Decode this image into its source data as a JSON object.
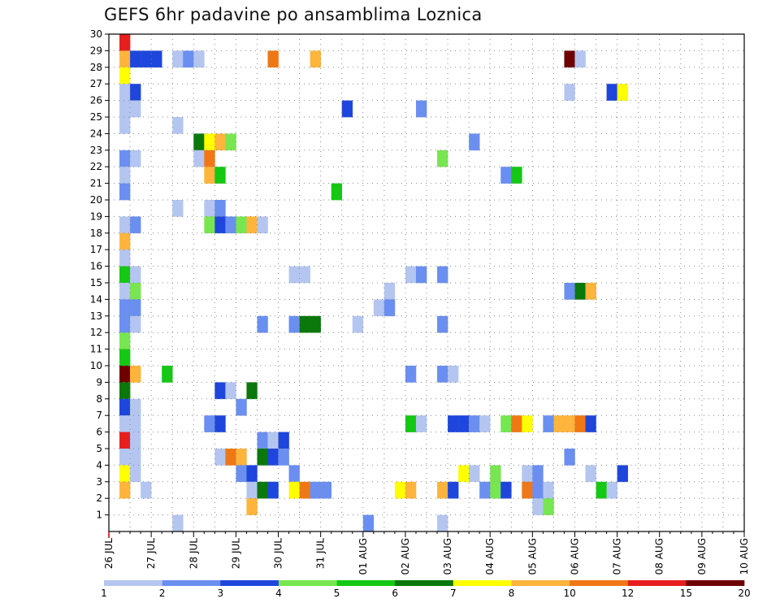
{
  "chart_data": {
    "type": "heatmap",
    "title": "GEFS 6hr padavine po ansamblima Loznica",
    "x_tick_labels": [
      "26 JUL",
      "27 JUL",
      "28 JUL",
      "29 JUL",
      "30 JUL",
      "31 JUL",
      "01 AUG",
      "02 AUG",
      "03 AUG",
      "04 AUG",
      "05 AUG",
      "06 AUG",
      "07 AUG",
      "08 AUG",
      "09 AUG",
      "10 AUG"
    ],
    "x_steps_per_day": 4,
    "x_range_steps": [
      0,
      60
    ],
    "y_tick_labels": [
      "1",
      "2",
      "3",
      "4",
      "5",
      "6",
      "7",
      "8",
      "9",
      "10",
      "11",
      "12",
      "13",
      "14",
      "15",
      "16",
      "17",
      "18",
      "19",
      "20",
      "21",
      "22",
      "23",
      "24",
      "25",
      "26",
      "27",
      "28",
      "29",
      "30"
    ],
    "y_range": [
      0,
      30
    ],
    "grid": "dotted",
    "colorbar": {
      "labels": [
        "1",
        "2",
        "3",
        "4",
        "5",
        "6",
        "7",
        "8",
        "10",
        "12",
        "15",
        "20"
      ],
      "colors": [
        "#b4c6f0",
        "#6a8ff0",
        "#1e46dc",
        "#78e650",
        "#14c814",
        "#0a780a",
        "#ffff00",
        "#ffb43c",
        "#f07814",
        "#e61e1e",
        "#6e0000"
      ]
    },
    "cells": [
      [
        1,
        30,
        10
      ],
      [
        1,
        29,
        8
      ],
      [
        1,
        28,
        7
      ],
      [
        1,
        27,
        1
      ],
      [
        1,
        26,
        1
      ],
      [
        1,
        25,
        1
      ],
      [
        1,
        23,
        2
      ],
      [
        1,
        22,
        1
      ],
      [
        1,
        21,
        2
      ],
      [
        1,
        19,
        1
      ],
      [
        1,
        18,
        8
      ],
      [
        1,
        17,
        1
      ],
      [
        1,
        16,
        5
      ],
      [
        1,
        15,
        1
      ],
      [
        1,
        14,
        2
      ],
      [
        1,
        13,
        2
      ],
      [
        1,
        12,
        4
      ],
      [
        1,
        11,
        5
      ],
      [
        1,
        10,
        11
      ],
      [
        1,
        9,
        6
      ],
      [
        1,
        8,
        3
      ],
      [
        1,
        7,
        1
      ],
      [
        1,
        6,
        10
      ],
      [
        1,
        5,
        1
      ],
      [
        1,
        4,
        7
      ],
      [
        1,
        3,
        8
      ],
      [
        2,
        29,
        3
      ],
      [
        2,
        27,
        3
      ],
      [
        2,
        26,
        1
      ],
      [
        2,
        23,
        1
      ],
      [
        2,
        19,
        2
      ],
      [
        2,
        16,
        1
      ],
      [
        2,
        15,
        4
      ],
      [
        2,
        14,
        2
      ],
      [
        2,
        13,
        1
      ],
      [
        2,
        10,
        8
      ],
      [
        2,
        8,
        1
      ],
      [
        2,
        7,
        1
      ],
      [
        2,
        6,
        1
      ],
      [
        2,
        5,
        1
      ],
      [
        2,
        4,
        1
      ],
      [
        3,
        29,
        3
      ],
      [
        3,
        3,
        1
      ],
      [
        4,
        29,
        3
      ],
      [
        5,
        10,
        5
      ],
      [
        6,
        1,
        1
      ],
      [
        6,
        20,
        1
      ],
      [
        6,
        25,
        1
      ],
      [
        6,
        29,
        1
      ],
      [
        7,
        29,
        2
      ],
      [
        8,
        29,
        1
      ],
      [
        8,
        24,
        6
      ],
      [
        8,
        23,
        1
      ],
      [
        9,
        24,
        7
      ],
      [
        9,
        23,
        9
      ],
      [
        9,
        22,
        8
      ],
      [
        9,
        20,
        1
      ],
      [
        9,
        19,
        4
      ],
      [
        9,
        7,
        2
      ],
      [
        10,
        24,
        8
      ],
      [
        10,
        22,
        5
      ],
      [
        10,
        20,
        2
      ],
      [
        10,
        19,
        3
      ],
      [
        10,
        9,
        3
      ],
      [
        10,
        7,
        3
      ],
      [
        10,
        5,
        1
      ],
      [
        11,
        24,
        4
      ],
      [
        11,
        19,
        2
      ],
      [
        11,
        9,
        1
      ],
      [
        11,
        5,
        9
      ],
      [
        12,
        19,
        4
      ],
      [
        12,
        8,
        2
      ],
      [
        12,
        5,
        8
      ],
      [
        12,
        4,
        2
      ],
      [
        13,
        19,
        8
      ],
      [
        13,
        9,
        6
      ],
      [
        13,
        4,
        3
      ],
      [
        13,
        3,
        1
      ],
      [
        13,
        2,
        8
      ],
      [
        14,
        19,
        1
      ],
      [
        14,
        13,
        2
      ],
      [
        14,
        6,
        2
      ],
      [
        14,
        5,
        6
      ],
      [
        14,
        3,
        6
      ],
      [
        15,
        29,
        9
      ],
      [
        15,
        6,
        1
      ],
      [
        15,
        5,
        3
      ],
      [
        15,
        3,
        3
      ],
      [
        16,
        6,
        3
      ],
      [
        16,
        5,
        2
      ],
      [
        17,
        16,
        1
      ],
      [
        17,
        13,
        2
      ],
      [
        17,
        4,
        2
      ],
      [
        17,
        3,
        7
      ],
      [
        18,
        16,
        1
      ],
      [
        18,
        13,
        6
      ],
      [
        18,
        3,
        9
      ],
      [
        19,
        29,
        8
      ],
      [
        19,
        13,
        6
      ],
      [
        19,
        3,
        2
      ],
      [
        20,
        3,
        2
      ],
      [
        21,
        21,
        5
      ],
      [
        22,
        26,
        3
      ],
      [
        23,
        13,
        1
      ],
      [
        24,
        1,
        2
      ],
      [
        25,
        14,
        1
      ],
      [
        26,
        15,
        1
      ],
      [
        26,
        14,
        2
      ],
      [
        27,
        3,
        7
      ],
      [
        28,
        16,
        1
      ],
      [
        28,
        10,
        2
      ],
      [
        28,
        7,
        5
      ],
      [
        28,
        3,
        8
      ],
      [
        29,
        26,
        2
      ],
      [
        29,
        16,
        2
      ],
      [
        29,
        7,
        1
      ],
      [
        31,
        23,
        4
      ],
      [
        31,
        16,
        2
      ],
      [
        31,
        13,
        2
      ],
      [
        31,
        10,
        2
      ],
      [
        31,
        3,
        8
      ],
      [
        31,
        1,
        1
      ],
      [
        32,
        10,
        1
      ],
      [
        32,
        7,
        3
      ],
      [
        32,
        3,
        3
      ],
      [
        33,
        7,
        3
      ],
      [
        33,
        4,
        7
      ],
      [
        34,
        24,
        2
      ],
      [
        34,
        7,
        2
      ],
      [
        34,
        4,
        1
      ],
      [
        35,
        7,
        1
      ],
      [
        35,
        3,
        2
      ],
      [
        36,
        4,
        4
      ],
      [
        36,
        3,
        4
      ],
      [
        37,
        22,
        2
      ],
      [
        37,
        7,
        4
      ],
      [
        37,
        3,
        3
      ],
      [
        38,
        22,
        5
      ],
      [
        38,
        7,
        9
      ],
      [
        39,
        7,
        7
      ],
      [
        39,
        4,
        1
      ],
      [
        39,
        3,
        9
      ],
      [
        40,
        4,
        2
      ],
      [
        40,
        3,
        2
      ],
      [
        40,
        2,
        1
      ],
      [
        41,
        7,
        2
      ],
      [
        41,
        3,
        1
      ],
      [
        41,
        2,
        4
      ],
      [
        42,
        7,
        8
      ],
      [
        43,
        29,
        11
      ],
      [
        43,
        27,
        1
      ],
      [
        43,
        15,
        2
      ],
      [
        43,
        7,
        8
      ],
      [
        43,
        5,
        2
      ],
      [
        44,
        29,
        1
      ],
      [
        44,
        15,
        6
      ],
      [
        44,
        7,
        9
      ],
      [
        45,
        15,
        8
      ],
      [
        45,
        7,
        3
      ],
      [
        45,
        4,
        1
      ],
      [
        46,
        3,
        5
      ],
      [
        47,
        27,
        3
      ],
      [
        47,
        3,
        1
      ],
      [
        48,
        27,
        7
      ],
      [
        48,
        4,
        3
      ]
    ]
  }
}
